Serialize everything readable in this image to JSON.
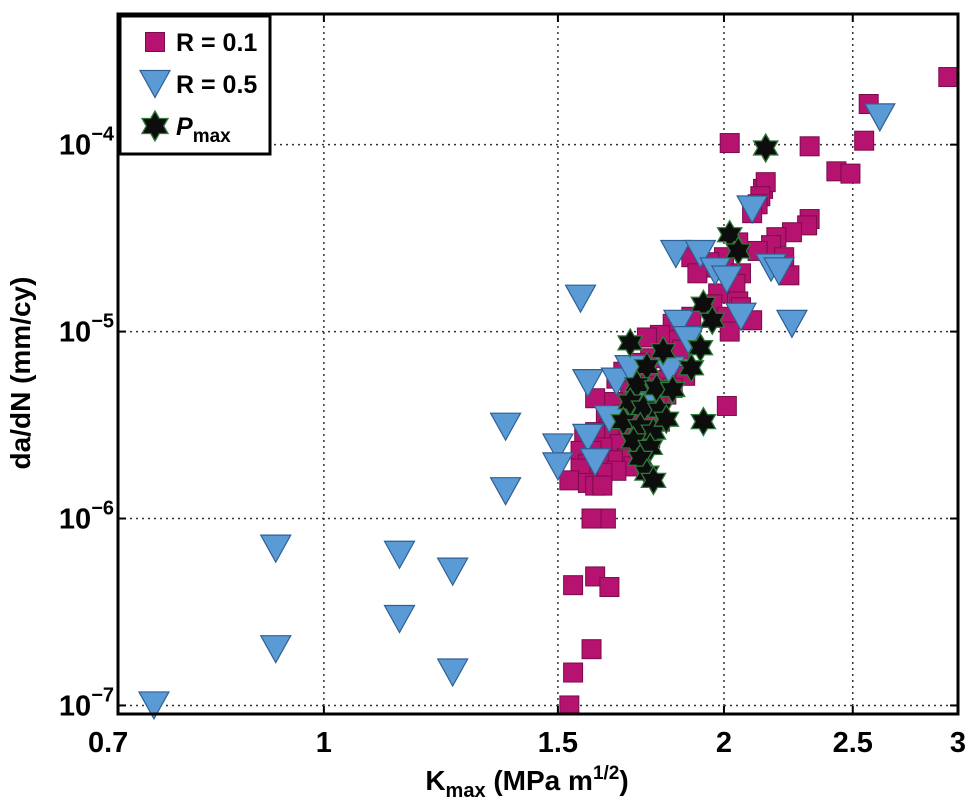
{
  "chart_data": {
    "type": "scatter",
    "title": "",
    "xlabel": {
      "base": "K",
      "sub": "max",
      "rest": " (MPa m",
      "sup": "1/2",
      "close": ")"
    },
    "ylabel": "da/dN (mm/cy)",
    "xscale": "log",
    "yscale": "log",
    "xlim": [
      0.7,
      3.0
    ],
    "ylim": [
      9e-08,
      0.0005
    ],
    "grid": true,
    "legend_position": "top-left",
    "x_ticks": [
      {
        "value": 0.7,
        "label": "0.7"
      },
      {
        "value": 1.0,
        "label": "1"
      },
      {
        "value": 1.5,
        "label": "1.5"
      },
      {
        "value": 2.0,
        "label": "2"
      },
      {
        "value": 2.5,
        "label": "2.5"
      },
      {
        "value": 3.0,
        "label": "3"
      }
    ],
    "y_ticks": [
      {
        "value": 1e-07,
        "base": "10",
        "exp": "−7"
      },
      {
        "value": 1e-06,
        "base": "10",
        "exp": "−6"
      },
      {
        "value": 1e-05,
        "base": "10",
        "exp": "−5"
      },
      {
        "value": 0.0001,
        "base": "10",
        "exp": "−4"
      }
    ],
    "series": [
      {
        "name": "R = 0.1",
        "label": {
          "text": "R = 0.1"
        },
        "marker": "square",
        "color": "#b5136f",
        "stroke": "#7a0c4a",
        "points": [
          [
            2.95,
            0.00023
          ],
          [
            2.57,
            0.000165
          ],
          [
            2.55,
            0.000105
          ],
          [
            2.32,
            9.8e-05
          ],
          [
            2.02,
            0.000102
          ],
          [
            2.43,
            7.2e-05
          ],
          [
            2.49,
            7e-05
          ],
          [
            2.14,
            5.8e-05
          ],
          [
            2.15,
            6.3e-05
          ],
          [
            2.13,
            5.3e-05
          ],
          [
            2.12,
            4.8e-05
          ],
          [
            2.1,
            4.3e-05
          ],
          [
            2.32,
            4e-05
          ],
          [
            2.31,
            3.7e-05
          ],
          [
            2.25,
            3.4e-05
          ],
          [
            2.19,
            3.2e-05
          ],
          [
            2.17,
            2.9e-05
          ],
          [
            2.12,
            2.7e-05
          ],
          [
            2.05,
            3e-05
          ],
          [
            2.0,
            2.5e-05
          ],
          [
            1.97,
            2.2e-05
          ],
          [
            1.95,
            2.35e-05
          ],
          [
            1.89,
            2.5e-05
          ],
          [
            1.91,
            2.05e-05
          ],
          [
            2.06,
            2.05e-05
          ],
          [
            2.22,
            2.5e-05
          ],
          [
            2.24,
            2e-05
          ],
          [
            2.04,
            1.8e-05
          ],
          [
            1.98,
            1.6e-05
          ],
          [
            2.05,
            1.45e-05
          ],
          [
            2.06,
            1.35e-05
          ],
          [
            1.96,
            1.4e-05
          ],
          [
            2.01,
            1.2e-05
          ],
          [
            2.1,
            1.15e-05
          ],
          [
            1.89,
            1.2e-05
          ],
          [
            1.83,
            1.1e-05
          ],
          [
            2.02,
            1e-05
          ],
          [
            1.84,
            9e-06
          ],
          [
            1.79,
            9.6e-06
          ],
          [
            1.75,
            9.3e-06
          ],
          [
            1.86,
            8e-06
          ],
          [
            1.8,
            7.7e-06
          ],
          [
            1.76,
            7.2e-06
          ],
          [
            1.73,
            6.8e-06
          ],
          [
            1.71,
            6.2e-06
          ],
          [
            1.68,
            6.1e-06
          ],
          [
            1.66,
            5.6e-06
          ],
          [
            1.82,
            6.3e-06
          ],
          [
            1.79,
            5.5e-06
          ],
          [
            1.76,
            5.1e-06
          ],
          [
            1.87,
            5.8e-06
          ],
          [
            1.83,
            5e-06
          ],
          [
            1.7,
            4.8e-06
          ],
          [
            1.72,
            4.3e-06
          ],
          [
            1.67,
            4.1e-06
          ],
          [
            1.65,
            4.2e-06
          ],
          [
            1.6,
            4.4e-06
          ],
          [
            1.81,
            4.6e-06
          ],
          [
            1.78,
            4e-06
          ],
          [
            1.75,
            3.8e-06
          ],
          [
            1.71,
            3.7e-06
          ],
          [
            1.68,
            3.6e-06
          ],
          [
            1.63,
            3.5e-06
          ],
          [
            1.79,
            3.3e-06
          ],
          [
            1.74,
            3.2e-06
          ],
          [
            1.69,
            3e-06
          ],
          [
            1.64,
            3e-06
          ],
          [
            1.6,
            2.9e-06
          ],
          [
            1.57,
            2.8e-06
          ],
          [
            1.76,
            2.7e-06
          ],
          [
            1.72,
            2.6e-06
          ],
          [
            1.67,
            2.5e-06
          ],
          [
            1.62,
            2.4e-06
          ],
          [
            1.59,
            2.3e-06
          ],
          [
            1.56,
            2.3e-06
          ],
          [
            1.73,
            2.2e-06
          ],
          [
            1.69,
            2.1e-06
          ],
          [
            1.65,
            2.05e-06
          ],
          [
            1.61,
            2e-06
          ],
          [
            1.58,
            1.95e-06
          ],
          [
            1.56,
            1.85e-06
          ],
          [
            1.71,
            1.9e-06
          ],
          [
            1.66,
            1.8e-06
          ],
          [
            1.62,
            1.75e-06
          ],
          [
            1.53,
            1.6e-06
          ],
          [
            1.58,
            1.55e-06
          ],
          [
            1.6,
            1.5e-06
          ],
          [
            1.62,
            1.5e-06
          ],
          [
            1.59,
            1e-06
          ],
          [
            1.63,
            1e-06
          ],
          [
            2.01,
            4e-06
          ],
          [
            1.59,
            1e-06
          ],
          [
            1.6,
            4.9e-07
          ],
          [
            1.54,
            4.4e-07
          ],
          [
            1.64,
            4.3e-07
          ],
          [
            1.59,
            2e-07
          ],
          [
            1.54,
            1.5e-07
          ],
          [
            1.53,
            1e-07
          ]
        ]
      },
      {
        "name": "R = 0.5",
        "label": {
          "text": "R = 0.5"
        },
        "marker": "triangle-down",
        "color": "#5b9bd5",
        "stroke": "#2f5f94",
        "points": [
          [
            0.745,
            1e-07
          ],
          [
            0.92,
            6.9e-07
          ],
          [
            0.92,
            2e-07
          ],
          [
            1.14,
            6.4e-07
          ],
          [
            1.14,
            2.9e-07
          ],
          [
            1.25,
            5.2e-07
          ],
          [
            1.25,
            1.5e-07
          ],
          [
            1.37,
            3.1e-06
          ],
          [
            1.37,
            1.4e-06
          ],
          [
            1.5,
            2.4e-06
          ],
          [
            1.5,
            1.9e-06
          ],
          [
            1.56,
            1.5e-05
          ],
          [
            1.58,
            5.3e-06
          ],
          [
            1.58,
            2.7e-06
          ],
          [
            1.6,
            2e-06
          ],
          [
            1.64,
            3.4e-06
          ],
          [
            1.66,
            5.4e-06
          ],
          [
            1.7,
            6.3e-06
          ],
          [
            1.74,
            4e-06
          ],
          [
            1.82,
            6.2e-06
          ],
          [
            1.85,
            1.1e-05
          ],
          [
            1.88,
            9e-06
          ],
          [
            1.84,
            2.6e-05
          ],
          [
            1.92,
            2.6e-05
          ],
          [
            1.97,
            2.1e-05
          ],
          [
            2.01,
            1.9e-05
          ],
          [
            2.06,
            1.2e-05
          ],
          [
            2.1,
            4.5e-05
          ],
          [
            2.17,
            2.2e-05
          ],
          [
            2.2,
            2.1e-05
          ],
          [
            2.25,
            1.1e-05
          ],
          [
            2.62,
            0.00014
          ]
        ]
      },
      {
        "name": "Pmax",
        "label": {
          "main": "P",
          "sub": "max"
        },
        "marker": "star",
        "color": "#0d0d0d",
        "stroke": "#2f7a3a",
        "points": [
          [
            2.15,
            9.6e-05
          ],
          [
            2.02,
            3.3e-05
          ],
          [
            2.05,
            2.7e-05
          ],
          [
            1.93,
            1.4e-05
          ],
          [
            1.96,
            1.15e-05
          ],
          [
            1.7,
            8.7e-06
          ],
          [
            1.8,
            7.9e-06
          ],
          [
            1.92,
            8.2e-06
          ],
          [
            1.75,
            6.5e-06
          ],
          [
            1.89,
            6.4e-06
          ],
          [
            1.72,
            5.2e-06
          ],
          [
            1.78,
            5e-06
          ],
          [
            1.83,
            4.9e-06
          ],
          [
            1.7,
            4.2e-06
          ],
          [
            1.74,
            3.9e-06
          ],
          [
            1.79,
            3.8e-06
          ],
          [
            1.68,
            3.3e-06
          ],
          [
            1.73,
            3.1e-06
          ],
          [
            1.77,
            2.9e-06
          ],
          [
            1.81,
            3.4e-06
          ],
          [
            1.93,
            3.3e-06
          ],
          [
            1.71,
            2.6e-06
          ],
          [
            1.76,
            2.4e-06
          ],
          [
            1.73,
            2.1e-06
          ],
          [
            1.75,
            1.75e-06
          ],
          [
            1.77,
            1.6e-06
          ]
        ]
      }
    ]
  }
}
